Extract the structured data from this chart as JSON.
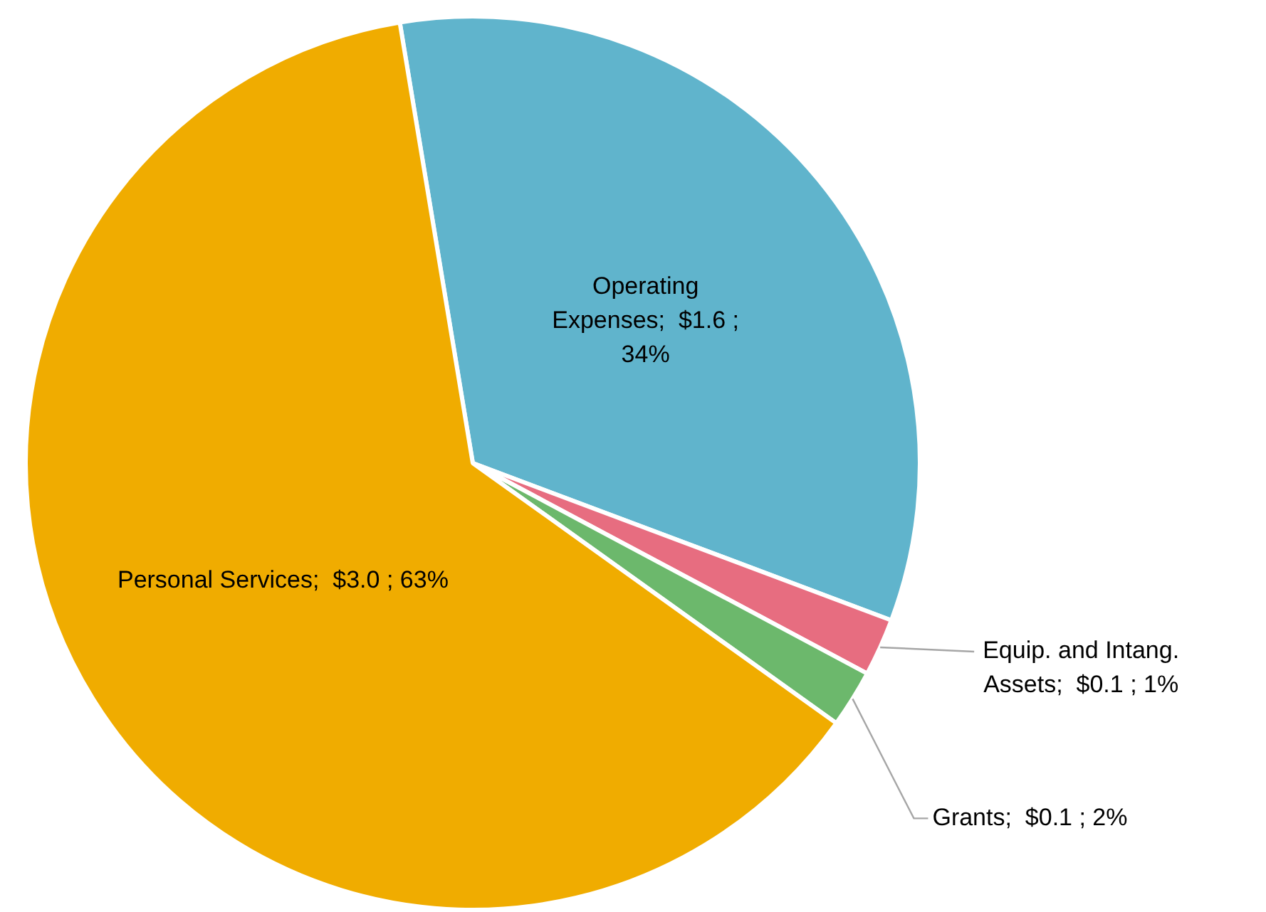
{
  "chart_data": {
    "type": "pie",
    "categories": [
      "Operating Expenses",
      "Equip. and Intang. Assets",
      "Grants",
      "Personal Services"
    ],
    "values": [
      1.6,
      0.1,
      0.1,
      3.0
    ],
    "value_labels": [
      "$1.6 ; 34%",
      "$0.1 ; 1%",
      "$0.1 ; 2%",
      "$3.0 ; 63%"
    ],
    "colors": [
      "#60b4cc",
      "#e76d80",
      "#6cb86c",
      "#f0ac00"
    ],
    "legend": false
  }
}
